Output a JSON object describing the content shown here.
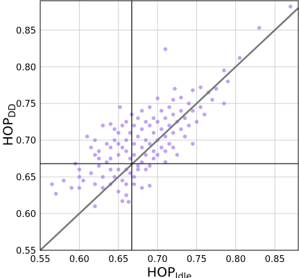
{
  "chart_data": {
    "type": "scatter",
    "xlabel": {
      "text": "HOP",
      "subscript": "Idle"
    },
    "ylabel": {
      "text": "HOP",
      "subscript": "DD"
    },
    "color": "#9966ee",
    "grid": true,
    "identity_line": true,
    "vline": 0.667,
    "hline": 0.668,
    "xlim": [
      0.55,
      0.88
    ],
    "ylim": [
      0.55,
      0.89
    ],
    "xticks": [
      0.55,
      {
        "value": 0.6,
        "label": "0.60"
      },
      0.65,
      {
        "value": 0.7,
        "label": "0.70"
      },
      0.75,
      {
        "value": 0.8,
        "label": "0.80"
      },
      0.85
    ],
    "yticks": [
      0.55,
      {
        "value": 0.6,
        "label": "0.60"
      },
      0.65,
      {
        "value": 0.7,
        "label": "0.70"
      },
      0.75,
      {
        "value": 0.8,
        "label": "0.80"
      },
      0.85
    ],
    "x": [
      0.87,
      0.83,
      0.805,
      0.71,
      0.565,
      0.57,
      0.59,
      0.6,
      0.595,
      0.785,
      0.79,
      0.775,
      0.765,
      0.755,
      0.745,
      0.73,
      0.74,
      0.62,
      0.655,
      0.663,
      0.63,
      0.64,
      0.652,
      0.667,
      0.7,
      0.722,
      0.745,
      0.75,
      0.785,
      0.76,
      0.68,
      0.69,
      0.61,
      0.615,
      0.62,
      0.6,
      0.605,
      0.63,
      0.635,
      0.64,
      0.645,
      0.65,
      0.655,
      0.66,
      0.665,
      0.67,
      0.675,
      0.68,
      0.685,
      0.69,
      0.695,
      0.7,
      0.705,
      0.71,
      0.715,
      0.72,
      0.725,
      0.73,
      0.735,
      0.66,
      0.665,
      0.67,
      0.675,
      0.68,
      0.685,
      0.69,
      0.695,
      0.7,
      0.705,
      0.71,
      0.715,
      0.72,
      0.65,
      0.645,
      0.64,
      0.655,
      0.66,
      0.665,
      0.67,
      0.675,
      0.68,
      0.685,
      0.69,
      0.695,
      0.7,
      0.71,
      0.72,
      0.65,
      0.645,
      0.655,
      0.66,
      0.675,
      0.68,
      0.69,
      0.635,
      0.625,
      0.64,
      0.65,
      0.66,
      0.67,
      0.685,
      0.695,
      0.705,
      0.715,
      0.73,
      0.74,
      0.625,
      0.615,
      0.62,
      0.63,
      0.64,
      0.65,
      0.66,
      0.67,
      0.62,
      0.625,
      0.755,
      0.77,
      0.735,
      0.72,
      0.745,
      0.71,
      0.725,
      0.6,
      0.58
    ],
    "values": [
      0.882,
      0.853,
      0.812,
      0.824,
      0.64,
      0.627,
      0.635,
      0.635,
      0.668,
      0.795,
      0.78,
      0.77,
      0.765,
      0.772,
      0.768,
      0.758,
      0.75,
      0.61,
      0.617,
      0.616,
      0.72,
      0.722,
      0.745,
      0.735,
      0.757,
      0.77,
      0.695,
      0.725,
      0.75,
      0.735,
      0.635,
      0.638,
      0.705,
      0.69,
      0.68,
      0.66,
      0.645,
      0.65,
      0.67,
      0.69,
      0.7,
      0.68,
      0.69,
      0.7,
      0.71,
      0.695,
      0.705,
      0.715,
      0.7,
      0.72,
      0.71,
      0.725,
      0.715,
      0.73,
      0.72,
      0.735,
      0.725,
      0.74,
      0.73,
      0.66,
      0.675,
      0.68,
      0.665,
      0.69,
      0.68,
      0.695,
      0.685,
      0.7,
      0.69,
      0.705,
      0.695,
      0.71,
      0.66,
      0.65,
      0.66,
      0.645,
      0.64,
      0.655,
      0.65,
      0.66,
      0.67,
      0.66,
      0.665,
      0.675,
      0.68,
      0.685,
      0.69,
      0.71,
      0.715,
      0.72,
      0.725,
      0.73,
      0.74,
      0.745,
      0.695,
      0.685,
      0.675,
      0.695,
      0.685,
      0.72,
      0.725,
      0.73,
      0.74,
      0.745,
      0.715,
      0.72,
      0.665,
      0.655,
      0.64,
      0.635,
      0.64,
      0.63,
      0.625,
      0.64,
      0.7,
      0.675,
      0.745,
      0.755,
      0.705,
      0.755,
      0.74,
      0.67,
      0.68,
      0.65,
      0.645
    ]
  }
}
